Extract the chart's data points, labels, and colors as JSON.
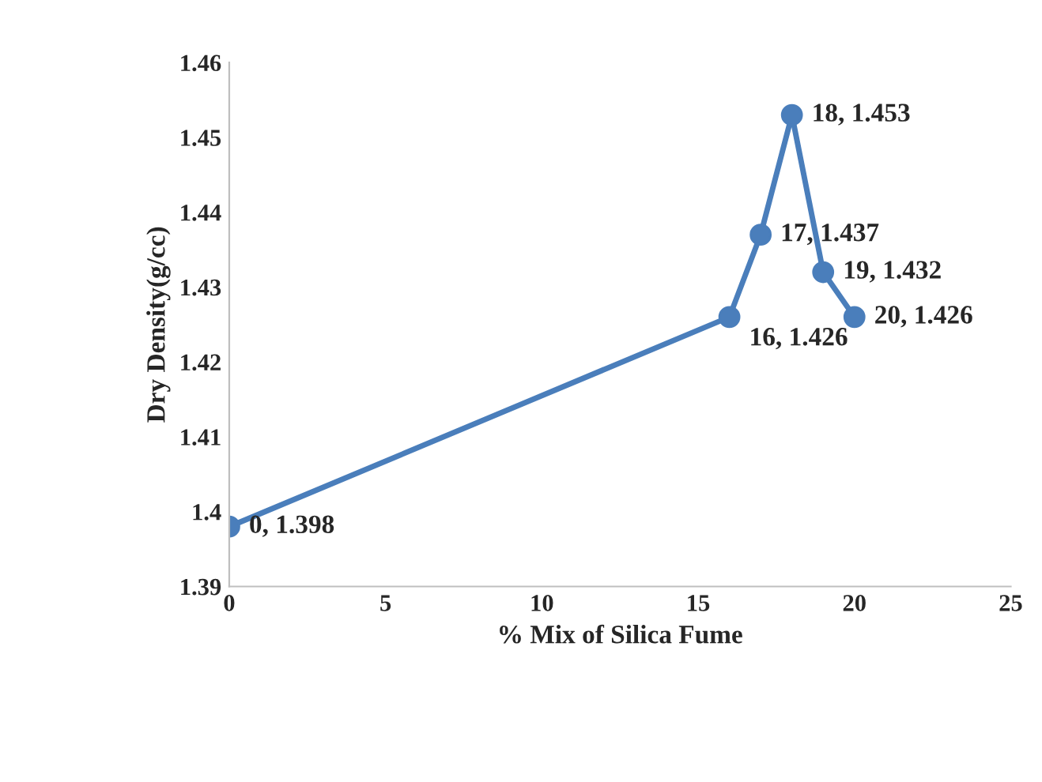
{
  "chart_data": {
    "type": "line",
    "xlabel": "% Mix of Silica Fume",
    "ylabel": "Dry Density(g/cc)",
    "x": [
      0,
      16,
      17,
      18,
      19,
      20
    ],
    "series": [
      {
        "color": "#4a7ebb",
        "values": [
          1.398,
          1.426,
          1.437,
          1.453,
          1.432,
          1.426
        ],
        "value_labels": [
          "0, 1.398",
          "16, 1.426",
          "17, 1.437",
          "18, 1.453",
          "19, 1.432",
          "20, 1.426"
        ]
      }
    ],
    "xlim": [
      0,
      25
    ],
    "xticks": [
      0,
      5,
      10,
      15,
      20,
      25
    ],
    "ylim": [
      1.39,
      1.46
    ],
    "yticks": [
      1.39,
      1.4,
      1.41,
      1.42,
      1.43,
      1.44,
      1.45,
      1.46
    ],
    "marker": "circle",
    "line_style": "solid",
    "grid": false,
    "legend": false
  }
}
